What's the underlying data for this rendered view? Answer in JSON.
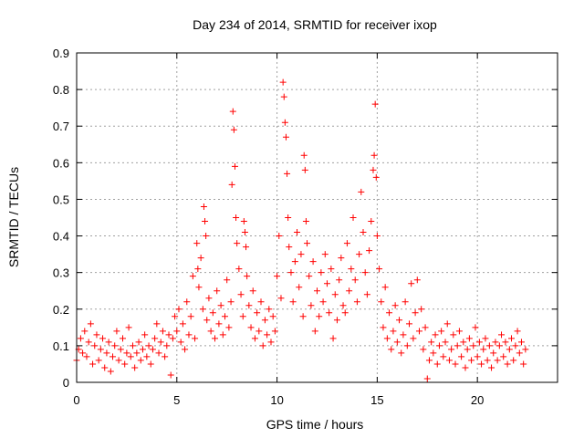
{
  "chart_data": {
    "type": "scatter",
    "title": "Day 234 of 2014, SRMTID for receiver ixop",
    "xlabel": "GPS time / hours",
    "ylabel": "SRMTID / TECUs",
    "xlim": [
      0,
      24
    ],
    "ylim": [
      0,
      0.9
    ],
    "xticks": [
      0,
      5,
      10,
      15,
      20
    ],
    "yticks": [
      0,
      0.1,
      0.2,
      0.3,
      0.4,
      0.5,
      0.6,
      0.7,
      0.8,
      0.9
    ],
    "xtick_labels": [
      "0",
      "5",
      "10",
      "15",
      "20"
    ],
    "ytick_labels": [
      "0",
      "0.1",
      "0.2",
      "0.3",
      "0.4",
      "0.5",
      "0.6",
      "0.7",
      "0.8",
      "0.9"
    ],
    "grid": true,
    "marker": "+",
    "color": "#ff0000",
    "series": [
      {
        "name": "SRMTID",
        "points": [
          [
            0.0,
            0.06
          ],
          [
            0.1,
            0.09
          ],
          [
            0.2,
            0.12
          ],
          [
            0.3,
            0.08
          ],
          [
            0.4,
            0.14
          ],
          [
            0.5,
            0.07
          ],
          [
            0.6,
            0.11
          ],
          [
            0.7,
            0.16
          ],
          [
            0.8,
            0.05
          ],
          [
            0.9,
            0.1
          ],
          [
            1.0,
            0.13
          ],
          [
            1.1,
            0.06
          ],
          [
            1.2,
            0.09
          ],
          [
            1.3,
            0.12
          ],
          [
            1.4,
            0.04
          ],
          [
            1.5,
            0.08
          ],
          [
            1.6,
            0.11
          ],
          [
            1.7,
            0.03
          ],
          [
            1.8,
            0.07
          ],
          [
            1.9,
            0.1
          ],
          [
            2.0,
            0.14
          ],
          [
            2.1,
            0.06
          ],
          [
            2.2,
            0.09
          ],
          [
            2.3,
            0.12
          ],
          [
            2.4,
            0.05
          ],
          [
            2.5,
            0.08
          ],
          [
            2.6,
            0.15
          ],
          [
            2.7,
            0.07
          ],
          [
            2.8,
            0.1
          ],
          [
            2.9,
            0.04
          ],
          [
            3.0,
            0.08
          ],
          [
            3.1,
            0.11
          ],
          [
            3.2,
            0.06
          ],
          [
            3.3,
            0.09
          ],
          [
            3.4,
            0.13
          ],
          [
            3.5,
            0.07
          ],
          [
            3.6,
            0.1
          ],
          [
            3.7,
            0.05
          ],
          [
            3.8,
            0.09
          ],
          [
            3.9,
            0.12
          ],
          [
            4.0,
            0.16
          ],
          [
            4.1,
            0.08
          ],
          [
            4.2,
            0.11
          ],
          [
            4.3,
            0.14
          ],
          [
            4.4,
            0.07
          ],
          [
            4.5,
            0.1
          ],
          [
            4.6,
            0.13
          ],
          [
            4.7,
            0.02
          ],
          [
            4.8,
            0.12
          ],
          [
            4.9,
            0.18
          ],
          [
            5.0,
            0.14
          ],
          [
            5.1,
            0.2
          ],
          [
            5.2,
            0.11
          ],
          [
            5.3,
            0.16
          ],
          [
            5.4,
            0.09
          ],
          [
            5.5,
            0.22
          ],
          [
            5.6,
            0.13
          ],
          [
            5.7,
            0.18
          ],
          [
            5.8,
            0.29
          ],
          [
            5.9,
            0.12
          ],
          [
            6.0,
            0.38
          ],
          [
            6.05,
            0.31
          ],
          [
            6.1,
            0.26
          ],
          [
            6.2,
            0.34
          ],
          [
            6.3,
            0.2
          ],
          [
            6.35,
            0.48
          ],
          [
            6.4,
            0.44
          ],
          [
            6.45,
            0.4
          ],
          [
            6.5,
            0.17
          ],
          [
            6.6,
            0.23
          ],
          [
            6.7,
            0.14
          ],
          [
            6.8,
            0.19
          ],
          [
            6.9,
            0.12
          ],
          [
            7.0,
            0.25
          ],
          [
            7.1,
            0.16
          ],
          [
            7.2,
            0.21
          ],
          [
            7.3,
            0.13
          ],
          [
            7.4,
            0.18
          ],
          [
            7.5,
            0.28
          ],
          [
            7.6,
            0.15
          ],
          [
            7.7,
            0.22
          ],
          [
            7.75,
            0.54
          ],
          [
            7.8,
            0.74
          ],
          [
            7.85,
            0.69
          ],
          [
            7.9,
            0.59
          ],
          [
            7.95,
            0.45
          ],
          [
            8.0,
            0.38
          ],
          [
            8.1,
            0.31
          ],
          [
            8.2,
            0.24
          ],
          [
            8.3,
            0.18
          ],
          [
            8.35,
            0.44
          ],
          [
            8.4,
            0.41
          ],
          [
            8.45,
            0.37
          ],
          [
            8.5,
            0.29
          ],
          [
            8.6,
            0.21
          ],
          [
            8.7,
            0.15
          ],
          [
            8.8,
            0.25
          ],
          [
            8.9,
            0.12
          ],
          [
            9.0,
            0.19
          ],
          [
            9.1,
            0.14
          ],
          [
            9.2,
            0.22
          ],
          [
            9.3,
            0.1
          ],
          [
            9.4,
            0.17
          ],
          [
            9.5,
            0.13
          ],
          [
            9.6,
            0.2
          ],
          [
            9.7,
            0.11
          ],
          [
            9.8,
            0.18
          ],
          [
            9.9,
            0.14
          ],
          [
            10.0,
            0.29
          ],
          [
            10.1,
            0.4
          ],
          [
            10.2,
            0.23
          ],
          [
            10.3,
            0.82
          ],
          [
            10.35,
            0.78
          ],
          [
            10.4,
            0.71
          ],
          [
            10.45,
            0.67
          ],
          [
            10.5,
            0.57
          ],
          [
            10.55,
            0.45
          ],
          [
            10.6,
            0.37
          ],
          [
            10.7,
            0.3
          ],
          [
            10.8,
            0.22
          ],
          [
            10.9,
            0.33
          ],
          [
            11.0,
            0.41
          ],
          [
            11.1,
            0.26
          ],
          [
            11.2,
            0.35
          ],
          [
            11.3,
            0.18
          ],
          [
            11.35,
            0.62
          ],
          [
            11.4,
            0.58
          ],
          [
            11.45,
            0.44
          ],
          [
            11.5,
            0.38
          ],
          [
            11.6,
            0.29
          ],
          [
            11.7,
            0.21
          ],
          [
            11.8,
            0.33
          ],
          [
            11.9,
            0.14
          ],
          [
            12.0,
            0.25
          ],
          [
            12.1,
            0.18
          ],
          [
            12.2,
            0.3
          ],
          [
            12.3,
            0.22
          ],
          [
            12.4,
            0.35
          ],
          [
            12.5,
            0.27
          ],
          [
            12.6,
            0.19
          ],
          [
            12.7,
            0.31
          ],
          [
            12.8,
            0.12
          ],
          [
            12.9,
            0.24
          ],
          [
            13.0,
            0.17
          ],
          [
            13.1,
            0.28
          ],
          [
            13.2,
            0.34
          ],
          [
            13.3,
            0.21
          ],
          [
            13.4,
            0.19
          ],
          [
            13.5,
            0.38
          ],
          [
            13.6,
            0.25
          ],
          [
            13.7,
            0.31
          ],
          [
            13.8,
            0.45
          ],
          [
            13.9,
            0.28
          ],
          [
            14.0,
            0.22
          ],
          [
            14.1,
            0.35
          ],
          [
            14.2,
            0.52
          ],
          [
            14.3,
            0.41
          ],
          [
            14.4,
            0.3
          ],
          [
            14.5,
            0.24
          ],
          [
            14.6,
            0.36
          ],
          [
            14.7,
            0.44
          ],
          [
            14.8,
            0.58
          ],
          [
            14.85,
            0.62
          ],
          [
            14.9,
            0.76
          ],
          [
            14.95,
            0.56
          ],
          [
            15.0,
            0.4
          ],
          [
            15.1,
            0.31
          ],
          [
            15.2,
            0.22
          ],
          [
            15.3,
            0.15
          ],
          [
            15.4,
            0.26
          ],
          [
            15.5,
            0.12
          ],
          [
            15.6,
            0.19
          ],
          [
            15.7,
            0.09
          ],
          [
            15.8,
            0.14
          ],
          [
            15.9,
            0.21
          ],
          [
            16.0,
            0.11
          ],
          [
            16.1,
            0.17
          ],
          [
            16.2,
            0.08
          ],
          [
            16.3,
            0.13
          ],
          [
            16.4,
            0.22
          ],
          [
            16.5,
            0.1
          ],
          [
            16.6,
            0.16
          ],
          [
            16.7,
            0.27
          ],
          [
            16.8,
            0.12
          ],
          [
            16.9,
            0.19
          ],
          [
            17.0,
            0.28
          ],
          [
            17.1,
            0.14
          ],
          [
            17.2,
            0.2
          ],
          [
            17.3,
            0.09
          ],
          [
            17.4,
            0.15
          ],
          [
            17.5,
            0.01
          ],
          [
            17.6,
            0.06
          ],
          [
            17.7,
            0.11
          ],
          [
            17.8,
            0.08
          ],
          [
            17.9,
            0.13
          ],
          [
            18.0,
            0.05
          ],
          [
            18.1,
            0.1
          ],
          [
            18.2,
            0.14
          ],
          [
            18.3,
            0.07
          ],
          [
            18.4,
            0.11
          ],
          [
            18.5,
            0.16
          ],
          [
            18.6,
            0.06
          ],
          [
            18.7,
            0.09
          ],
          [
            18.8,
            0.13
          ],
          [
            18.9,
            0.05
          ],
          [
            19.0,
            0.1
          ],
          [
            19.1,
            0.14
          ],
          [
            19.2,
            0.07
          ],
          [
            19.3,
            0.11
          ],
          [
            19.4,
            0.04
          ],
          [
            19.5,
            0.09
          ],
          [
            19.6,
            0.12
          ],
          [
            19.7,
            0.06
          ],
          [
            19.8,
            0.1
          ],
          [
            19.9,
            0.15
          ],
          [
            20.0,
            0.07
          ],
          [
            20.1,
            0.11
          ],
          [
            20.2,
            0.05
          ],
          [
            20.3,
            0.09
          ],
          [
            20.4,
            0.12
          ],
          [
            20.5,
            0.06
          ],
          [
            20.6,
            0.1
          ],
          [
            20.7,
            0.04
          ],
          [
            20.8,
            0.08
          ],
          [
            20.9,
            0.11
          ],
          [
            21.0,
            0.06
          ],
          [
            21.1,
            0.1
          ],
          [
            21.2,
            0.13
          ],
          [
            21.3,
            0.07
          ],
          [
            21.4,
            0.11
          ],
          [
            21.5,
            0.05
          ],
          [
            21.6,
            0.09
          ],
          [
            21.7,
            0.12
          ],
          [
            21.8,
            0.06
          ],
          [
            21.9,
            0.1
          ],
          [
            22.0,
            0.14
          ],
          [
            22.1,
            0.08
          ],
          [
            22.2,
            0.11
          ],
          [
            22.3,
            0.05
          ],
          [
            22.4,
            0.09
          ]
        ]
      }
    ]
  }
}
